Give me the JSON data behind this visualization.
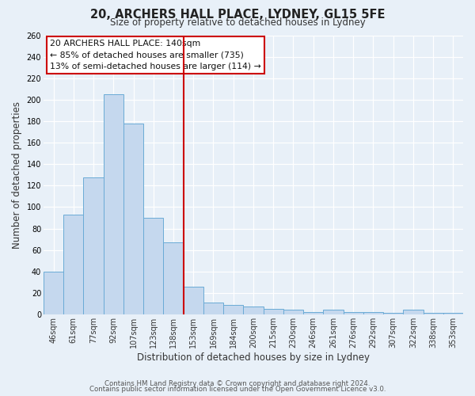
{
  "title": "20, ARCHERS HALL PLACE, LYDNEY, GL15 5FE",
  "subtitle": "Size of property relative to detached houses in Lydney",
  "xlabel": "Distribution of detached houses by size in Lydney",
  "ylabel": "Number of detached properties",
  "categories": [
    "46sqm",
    "61sqm",
    "77sqm",
    "92sqm",
    "107sqm",
    "123sqm",
    "138sqm",
    "153sqm",
    "169sqm",
    "184sqm",
    "200sqm",
    "215sqm",
    "230sqm",
    "246sqm",
    "261sqm",
    "276sqm",
    "292sqm",
    "307sqm",
    "322sqm",
    "338sqm",
    "353sqm"
  ],
  "values": [
    40,
    93,
    128,
    205,
    178,
    90,
    67,
    26,
    11,
    9,
    7,
    5,
    4,
    2,
    4,
    2,
    2,
    1,
    4,
    1,
    1
  ],
  "bar_color": "#c5d8ee",
  "bar_edge_color": "#6aabd6",
  "background_color": "#e8f0f8",
  "grid_color": "#ffffff",
  "vline_color": "#cc0000",
  "annotation_box_text_line1": "20 ARCHERS HALL PLACE: 140sqm",
  "annotation_box_text_line2": "← 85% of detached houses are smaller (735)",
  "annotation_box_text_line3": "13% of semi-detached houses are larger (114) →",
  "annotation_box_facecolor": "#ffffff",
  "annotation_box_edgecolor": "#cc0000",
  "footer_line1": "Contains HM Land Registry data © Crown copyright and database right 2024.",
  "footer_line2": "Contains public sector information licensed under the Open Government Licence v3.0.",
  "ylim": [
    0,
    260
  ],
  "yticks": [
    0,
    20,
    40,
    60,
    80,
    100,
    120,
    140,
    160,
    180,
    200,
    220,
    240,
    260
  ],
  "title_fontsize": 10.5,
  "subtitle_fontsize": 8.5,
  "xlabel_fontsize": 8.5,
  "ylabel_fontsize": 8.5,
  "tick_fontsize": 7,
  "annotation_fontsize": 7.8,
  "footer_fontsize": 6.2
}
